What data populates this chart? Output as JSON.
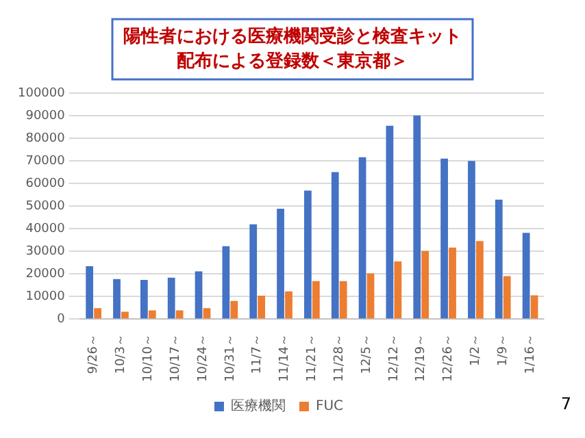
{
  "chart_data": {
    "type": "bar",
    "title": "陽性者における医療機関受診と検査キット配布による登録数＜東京都＞",
    "categories": [
      "9/26～",
      "10/3～",
      "10/10～",
      "10/17～",
      "10/24～",
      "10/31～",
      "11/7～",
      "11/14～",
      "11/21～",
      "11/28～",
      "12/5～",
      "12/12～",
      "12/19～",
      "12/26～",
      "1/2～",
      "1/9～",
      "1/16～"
    ],
    "series": [
      {
        "name": "医療機関",
        "color": "#4472c4",
        "values": [
          23400,
          17700,
          17300,
          18300,
          21100,
          32200,
          41900,
          48800,
          56800,
          65000,
          71600,
          85500,
          90100,
          71000,
          69900,
          52800,
          38100
        ]
      },
      {
        "name": "FUC",
        "color": "#ed7d31",
        "values": [
          4800,
          3200,
          3800,
          3800,
          4800,
          8000,
          10300,
          12200,
          16800,
          16800,
          20200,
          25500,
          30100,
          31600,
          34500,
          19000,
          10500
        ]
      }
    ],
    "ylim": [
      0,
      100000
    ],
    "yticks": [
      0,
      10000,
      20000,
      30000,
      40000,
      50000,
      60000,
      70000,
      80000,
      90000,
      100000
    ],
    "grid": "y",
    "legend": "bottom",
    "annotations": [
      "7"
    ]
  }
}
